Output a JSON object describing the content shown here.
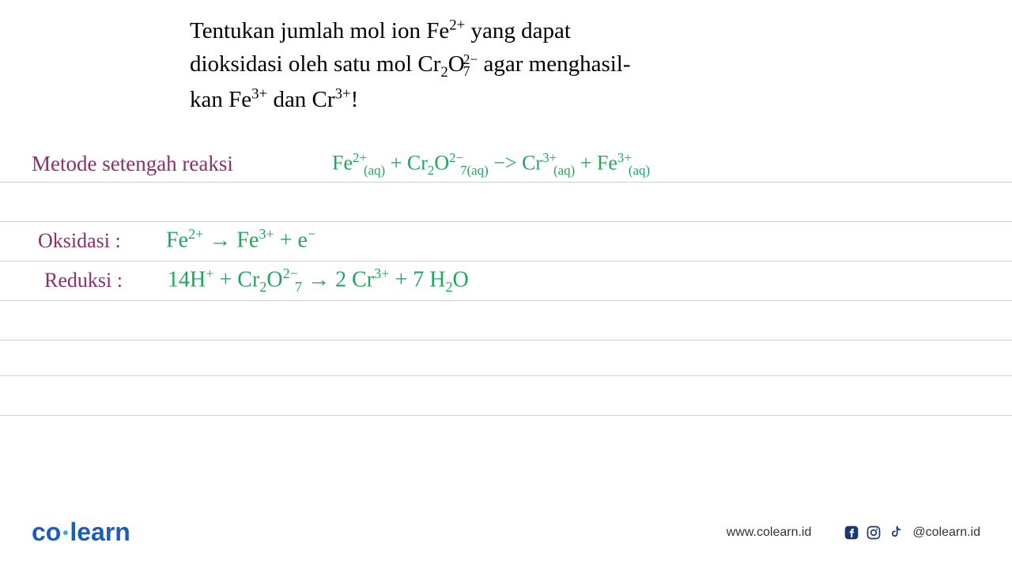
{
  "question": {
    "line1_pre": "Tentukan jumlah mol ion Fe",
    "line1_charge": "2+",
    "line1_post": " yang dapat",
    "line2_pre": "dioksidasi oleh satu mol Cr",
    "line2_sub1": "2",
    "line2_mid": "O",
    "line2_charge_top": "2−",
    "line2_charge_bot": "7",
    "line2_post": " agar menghasil-",
    "line3_pre": "kan Fe",
    "line3_charge1": "3+",
    "line3_mid": " dan Cr",
    "line3_charge2": "3+",
    "line3_post": "!",
    "font_size": 29,
    "color": "#000000"
  },
  "ruled_lines": {
    "color": "#d0d0d0",
    "y_positions": [
      230,
      280,
      330,
      380,
      430,
      475,
      525
    ]
  },
  "handwriting": {
    "purple_color": "#8b2f6f",
    "green_color": "#1fa85c",
    "method_label": "Metode setengah reaksi",
    "main_equation": {
      "parts": [
        {
          "t": "Fe",
          "sup": "2+",
          "sub": "(aq)"
        },
        {
          "t": "  +  "
        },
        {
          "t": "Cr",
          "sub": "2"
        },
        {
          "t": "O",
          "sub": "7",
          "sup": "2−"
        },
        {
          "sub": "(aq)"
        },
        {
          "t": "  −>  "
        },
        {
          "t": "Cr",
          "sup": "3+",
          "sub": "(aq)"
        },
        {
          "t": "  +  "
        },
        {
          "t": "Fe",
          "sup": "3+",
          "sub": "(aq)"
        }
      ]
    },
    "oksidasi_label": "Oksidasi :",
    "oksidasi_eq": {
      "parts": [
        {
          "t": "Fe",
          "sup": "2+"
        },
        {
          "t": " → Fe",
          "sup": "3+"
        },
        {
          "t": " + e",
          "sup": "−"
        }
      ]
    },
    "reduksi_label": "Reduksi :",
    "reduksi_eq": {
      "parts": [
        {
          "t": "14H",
          "sup": "+"
        },
        {
          "t": " + Cr",
          "sub": "2"
        },
        {
          "t": "O",
          "sub": "7",
          "sup": "2−"
        },
        {
          "t": " → 2 Cr",
          "sup": "3+"
        },
        {
          "t": " + 7 H",
          "sub": "2"
        },
        {
          "t": "O"
        }
      ]
    }
  },
  "footer": {
    "logo_co": "co",
    "logo_learn": "learn",
    "url": "www.colearn.id",
    "handle": "@colearn.id",
    "brand_color": "#1a5fb4",
    "icon_color": "#1a3770"
  }
}
